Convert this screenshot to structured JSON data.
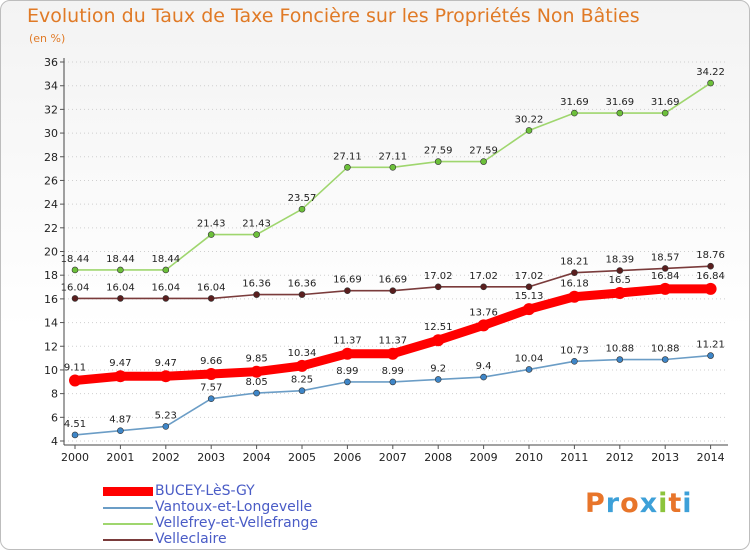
{
  "title": "Evolution du Taux de Taxe Foncière sur les Propriétés Non Bâties",
  "unit_label": "(en %)",
  "logo": {
    "text": "Proxiti",
    "letter_colors": [
      "#e8752a",
      "#3da0d8",
      "#e8752a",
      "#3da0d8",
      "#8cc43c",
      "#e8752a",
      "#3da0d8"
    ]
  },
  "chart_data": {
    "type": "line",
    "title": "Evolution du Taux de Taxe Foncière sur les Propriétés Non Bâties",
    "ylabel": "(en %)",
    "xlabel": "",
    "x": [
      "2000",
      "2001",
      "2002",
      "2003",
      "2004",
      "2005",
      "2006",
      "2007",
      "2008",
      "2009",
      "2010",
      "2011",
      "2012",
      "2013",
      "2014"
    ],
    "ylim": [
      4,
      36
    ],
    "yticks": [
      4,
      6,
      8,
      10,
      12,
      14,
      16,
      18,
      20,
      22,
      24,
      26,
      28,
      30,
      32,
      34,
      36
    ],
    "grid": "horizontal dotted",
    "legend_position": "bottom-left",
    "series": [
      {
        "name": "BUCEY-LèS-GY",
        "color": "#ff0000",
        "marker_color": "#ff0000",
        "emphasis": true,
        "values": [
          9.11,
          9.47,
          9.47,
          9.66,
          9.85,
          10.34,
          11.37,
          11.37,
          12.51,
          13.76,
          15.13,
          16.18,
          16.5,
          16.84,
          16.84
        ],
        "labels": [
          "9.11",
          "9.47",
          "9.47",
          "9.66",
          "9.85",
          "10.34",
          "11.37",
          "11.37",
          "12.51",
          "13.76",
          "15.13",
          "16.18",
          "16.5",
          "16.84",
          "16.84"
        ]
      },
      {
        "name": "Vantoux-et-Longevelle",
        "color": "#6b9dc6",
        "marker_color": "#3e86c8",
        "emphasis": false,
        "values": [
          4.51,
          4.87,
          5.23,
          7.57,
          8.05,
          8.25,
          8.99,
          8.99,
          9.2,
          9.4,
          10.04,
          10.73,
          10.88,
          10.88,
          11.21
        ],
        "labels": [
          "4.51",
          "4.87",
          "5.23",
          "7.57",
          "8.05",
          "8.25",
          "8.99",
          "8.99",
          "9.2",
          "9.4",
          "10.04",
          "10.73",
          "10.88",
          "10.88",
          "11.21"
        ]
      },
      {
        "name": "Vellefrey-et-Vellefrange",
        "color": "#9fd66e",
        "marker_color": "#6cc03a",
        "emphasis": false,
        "values": [
          18.44,
          18.44,
          18.44,
          21.43,
          21.43,
          23.57,
          27.11,
          27.11,
          27.59,
          27.59,
          30.22,
          31.69,
          31.69,
          31.69,
          34.22
        ],
        "labels": [
          "18.44",
          "18.44",
          "18.44",
          "21.43",
          "21.43",
          "23.57",
          "27.11",
          "27.11",
          "27.59",
          "27.59",
          "30.22",
          "31.69",
          "31.69",
          "31.69",
          "34.22"
        ]
      },
      {
        "name": "Velleclaire",
        "color": "#7a3b3b",
        "marker_color": "#5a1e1e",
        "emphasis": false,
        "values": [
          16.04,
          16.04,
          16.04,
          16.04,
          16.36,
          16.36,
          16.69,
          16.69,
          17.02,
          17.02,
          17.02,
          18.21,
          18.39,
          18.57,
          18.76
        ],
        "labels": [
          "16.04",
          "16.04",
          "16.04",
          "16.04",
          "16.36",
          "16.36",
          "16.69",
          "16.69",
          "17.02",
          "17.02",
          "17.02",
          "18.21",
          "18.39",
          "18.57",
          "18.76"
        ]
      }
    ]
  }
}
